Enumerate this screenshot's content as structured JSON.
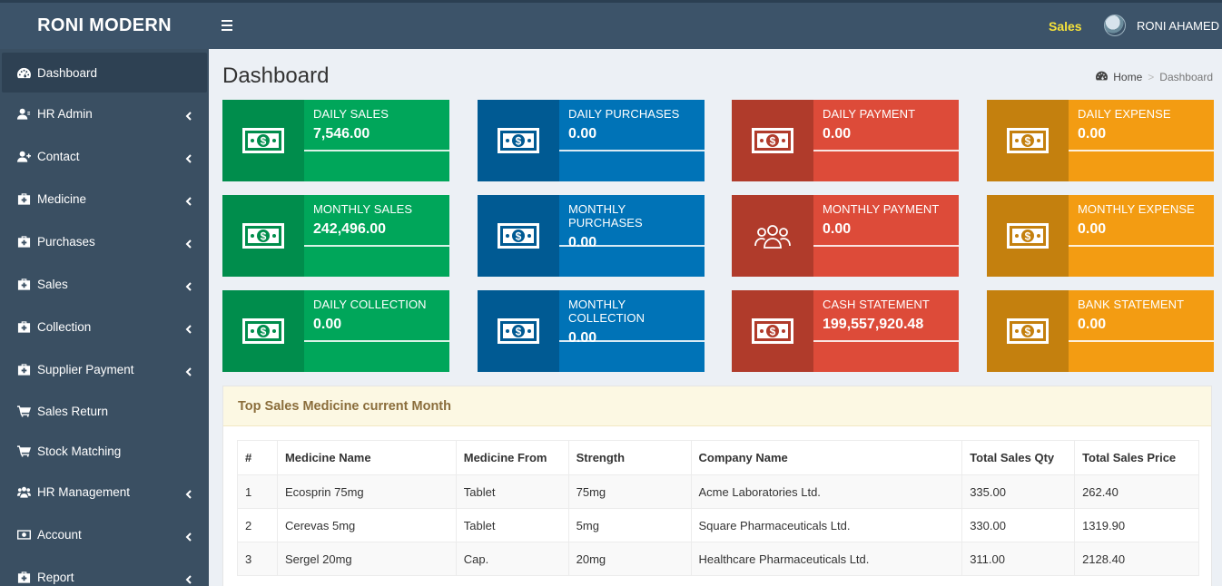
{
  "brand": "RONI MODERN",
  "topnav": {
    "sales_link": "Sales",
    "user_name": "RONI AHAMED"
  },
  "sidebar": {
    "items": [
      {
        "label": "Dashboard",
        "icon": "dashboard-icon",
        "active": true
      },
      {
        "label": "HR Admin",
        "icon": "user-icon",
        "expandable": true
      },
      {
        "label": "Contact",
        "icon": "user-plus-icon",
        "expandable": true
      },
      {
        "label": "Medicine",
        "icon": "medkit-icon",
        "expandable": true
      },
      {
        "label": "Purchases",
        "icon": "medkit-icon",
        "expandable": true
      },
      {
        "label": "Sales",
        "icon": "medkit-icon",
        "expandable": true
      },
      {
        "label": "Collection",
        "icon": "medkit-icon",
        "expandable": true
      },
      {
        "label": "Supplier Payment",
        "icon": "medkit-icon",
        "expandable": true
      },
      {
        "label": "Sales Return",
        "icon": "cart-icon",
        "expandable": false
      },
      {
        "label": "Stock Matching",
        "icon": "cart-icon",
        "expandable": false
      },
      {
        "label": "HR Management",
        "icon": "users-icon",
        "expandable": true
      },
      {
        "label": "Account",
        "icon": "money-icon",
        "expandable": true
      },
      {
        "label": "Report",
        "icon": "medkit-icon",
        "expandable": true
      }
    ]
  },
  "page": {
    "title": "Dashboard"
  },
  "breadcrumb": {
    "home": "Home",
    "current": "Dashboard"
  },
  "cards": [
    {
      "label": "DAILY SALES",
      "value": "7,546.00",
      "color": "green",
      "icon": "money-icon"
    },
    {
      "label": "DAILY PURCHASES",
      "value": "0.00",
      "color": "blue",
      "icon": "money-icon"
    },
    {
      "label": "DAILY PAYMENT",
      "value": "0.00",
      "color": "red",
      "icon": "money-icon"
    },
    {
      "label": "DAILY EXPENSE",
      "value": "0.00",
      "color": "orange",
      "icon": "money-icon"
    },
    {
      "label": "MONTHLY SALES",
      "value": "242,496.00",
      "color": "green",
      "icon": "money-icon"
    },
    {
      "label": "MONTHLY PURCHASES",
      "value": "0.00",
      "color": "blue",
      "icon": "money-icon"
    },
    {
      "label": "MONTHLY PAYMENT",
      "value": "0.00",
      "color": "red",
      "icon": "users-icon"
    },
    {
      "label": "MONTHLY EXPENSE",
      "value": "0.00",
      "color": "orange",
      "icon": "money-icon"
    },
    {
      "label": "DAILY COLLECTION",
      "value": "0.00",
      "color": "green",
      "icon": "money-icon"
    },
    {
      "label": "MONTHLY COLLECTION",
      "value": "0.00",
      "color": "blue",
      "icon": "money-icon"
    },
    {
      "label": "CASH STATEMENT",
      "value": "199,557,920.48",
      "color": "red",
      "icon": "money-icon"
    },
    {
      "label": "BANK STATEMENT",
      "value": "0.00",
      "color": "orange",
      "icon": "money-icon"
    }
  ],
  "colors": {
    "green": "#00a65a",
    "blue": "#0073b7",
    "red": "#dd4b39",
    "orange": "#f39c12",
    "sidebar": "#3a4f62",
    "topbar": "#3c5369"
  },
  "top_sales": {
    "title": "Top Sales Medicine current Month",
    "columns": [
      "#",
      "Medicine Name",
      "Medicine From",
      "Strength",
      "Company Name",
      "Total Sales Qty",
      "Total Sales Price"
    ],
    "rows": [
      [
        "1",
        "Ecosprin 75mg",
        "Tablet",
        "75mg",
        "Acme Laboratories Ltd.",
        "335.00",
        "262.40"
      ],
      [
        "2",
        "Cerevas 5mg",
        "Tablet",
        "5mg",
        "Square Pharmaceuticals Ltd.",
        "330.00",
        "1319.90"
      ],
      [
        "3",
        "Sergel 20mg",
        "Cap.",
        "20mg",
        "Healthcare Pharmaceuticals Ltd.",
        "311.00",
        "2128.40"
      ]
    ]
  }
}
